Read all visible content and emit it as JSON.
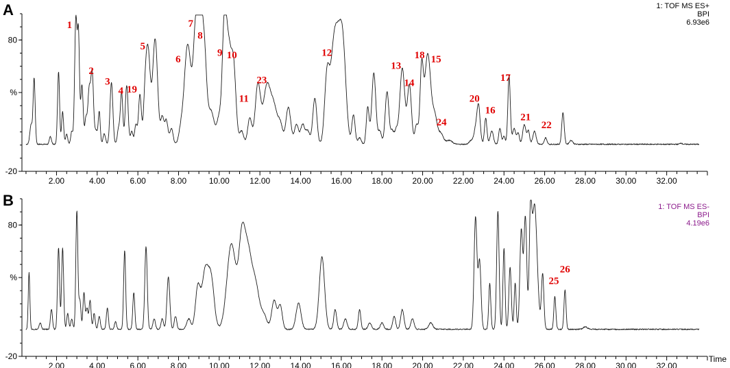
{
  "chart_data": [
    {
      "type": "line",
      "panel_label": "A",
      "info_lines": [
        "1: TOF MS ES+",
        "BPI",
        "6.93e6"
      ],
      "ylabel": "%",
      "yticks": [
        "80",
        "%",
        "-20"
      ],
      "xticks": [
        "2.00",
        "4.00",
        "6.00",
        "8.00",
        "10.00",
        "12.00",
        "14.00",
        "16.00",
        "18.00",
        "20.00",
        "22.00",
        "24.00",
        "26.00",
        "28.00",
        "30.00",
        "32.00"
      ],
      "xlim": [
        0.3,
        34.0
      ],
      "ylim": [
        -20,
        100
      ],
      "series": [
        {
          "peaks": [
            [
              0.75,
              15,
              0.06
            ],
            [
              0.9,
              50,
              0.05
            ],
            [
              1.7,
              6,
              0.05
            ],
            [
              2.1,
              55,
              0.05
            ],
            [
              2.3,
              25,
              0.05
            ],
            [
              2.5,
              8,
              0.05
            ],
            [
              2.75,
              10,
              0.05
            ],
            [
              2.95,
              95,
              0.06
            ],
            [
              3.08,
              80,
              0.05
            ],
            [
              3.25,
              45,
              0.06
            ],
            [
              3.45,
              20,
              0.06
            ],
            [
              3.6,
              38,
              0.06
            ],
            [
              3.75,
              55,
              0.07
            ],
            [
              3.95,
              10,
              0.06
            ],
            [
              4.1,
              25,
              0.05
            ],
            [
              4.35,
              8,
              0.06
            ],
            [
              4.7,
              47,
              0.07
            ],
            [
              5.05,
              12,
              0.06
            ],
            [
              5.2,
              40,
              0.06
            ],
            [
              5.45,
              45,
              0.07
            ],
            [
              5.7,
              10,
              0.06
            ],
            [
              5.9,
              15,
              0.06
            ],
            [
              6.1,
              38,
              0.07
            ],
            [
              6.35,
              25,
              0.08
            ],
            [
              6.5,
              70,
              0.11
            ],
            [
              6.85,
              80,
              0.12
            ],
            [
              7.2,
              20,
              0.08
            ],
            [
              7.4,
              18,
              0.08
            ],
            [
              7.65,
              12,
              0.08
            ],
            [
              8.1,
              8,
              0.1
            ],
            [
              8.45,
              76,
              0.17
            ],
            [
              8.85,
              85,
              0.12
            ],
            [
              9.05,
              80,
              0.1
            ],
            [
              9.25,
              75,
              0.12
            ],
            [
              9.6,
              25,
              0.15
            ],
            [
              10.0,
              20,
              0.12
            ],
            [
              10.25,
              85,
              0.1
            ],
            [
              10.45,
              67,
              0.12
            ],
            [
              10.7,
              60,
              0.12
            ],
            [
              11.1,
              10,
              0.1
            ],
            [
              11.5,
              20,
              0.1
            ],
            [
              11.9,
              45,
              0.13
            ],
            [
              12.35,
              45,
              0.18
            ],
            [
              12.7,
              25,
              0.15
            ],
            [
              13.0,
              15,
              0.12
            ],
            [
              13.4,
              28,
              0.12
            ],
            [
              13.8,
              15,
              0.1
            ],
            [
              14.1,
              15,
              0.1
            ],
            [
              14.35,
              10,
              0.1
            ],
            [
              14.7,
              35,
              0.1
            ],
            [
              15.3,
              52,
              0.12
            ],
            [
              15.6,
              45,
              0.15
            ],
            [
              15.85,
              70,
              0.2
            ],
            [
              16.1,
              50,
              0.15
            ],
            [
              16.6,
              22,
              0.08
            ],
            [
              16.9,
              5,
              0.08
            ],
            [
              17.3,
              28,
              0.07
            ],
            [
              17.6,
              54,
              0.1
            ],
            [
              17.9,
              10,
              0.08
            ],
            [
              18.25,
              40,
              0.09
            ],
            [
              18.5,
              10,
              0.08
            ],
            [
              18.7,
              10,
              0.08
            ],
            [
              19.0,
              58,
              0.12
            ],
            [
              19.35,
              45,
              0.1
            ],
            [
              19.7,
              15,
              0.08
            ],
            [
              19.95,
              55,
              0.08
            ],
            [
              20.25,
              69,
              0.15
            ],
            [
              20.6,
              20,
              0.12
            ],
            [
              20.9,
              8,
              0.12
            ],
            [
              21.3,
              3,
              0.15
            ],
            [
              22.4,
              3,
              0.1
            ],
            [
              22.6,
              10,
              0.08
            ],
            [
              22.75,
              29,
              0.08
            ],
            [
              23.1,
              20,
              0.06
            ],
            [
              23.4,
              10,
              0.08
            ],
            [
              23.8,
              12,
              0.06
            ],
            [
              24.0,
              6,
              0.06
            ],
            [
              24.25,
              52,
              0.06
            ],
            [
              24.5,
              12,
              0.08
            ],
            [
              24.7,
              8,
              0.06
            ],
            [
              25.0,
              15,
              0.08
            ],
            [
              25.2,
              10,
              0.06
            ],
            [
              25.5,
              10,
              0.08
            ],
            [
              26.05,
              5,
              0.06
            ],
            [
              26.9,
              24,
              0.06
            ],
            [
              27.3,
              3,
              0.08
            ],
            [
              32.7,
              1,
              0.05
            ]
          ]
        }
      ],
      "annotations": [
        {
          "text": "1",
          "x": 2.64,
          "y": 89
        },
        {
          "text": "2",
          "x": 3.71,
          "y": 54
        },
        {
          "text": "3",
          "x": 4.51,
          "y": 46
        },
        {
          "text": "4",
          "x": 5.16,
          "y": 39
        },
        {
          "text": "19",
          "x": 5.71,
          "y": 40
        },
        {
          "text": "5",
          "x": 6.24,
          "y": 73
        },
        {
          "text": "6",
          "x": 7.98,
          "y": 63
        },
        {
          "text": "7",
          "x": 8.6,
          "y": 90
        },
        {
          "text": "8",
          "x": 9.06,
          "y": 81
        },
        {
          "text": "9",
          "x": 10.03,
          "y": 68
        },
        {
          "text": "10",
          "x": 10.62,
          "y": 66
        },
        {
          "text": "11",
          "x": 11.21,
          "y": 33
        },
        {
          "text": "23",
          "x": 12.09,
          "y": 47
        },
        {
          "text": "12",
          "x": 15.29,
          "y": 68
        },
        {
          "text": "13",
          "x": 18.69,
          "y": 58
        },
        {
          "text": "14",
          "x": 19.34,
          "y": 45
        },
        {
          "text": "18",
          "x": 19.85,
          "y": 66
        },
        {
          "text": "15",
          "x": 20.66,
          "y": 63
        },
        {
          "text": "24",
          "x": 20.93,
          "y": 15
        },
        {
          "text": "20",
          "x": 22.55,
          "y": 33
        },
        {
          "text": "16",
          "x": 23.32,
          "y": 24
        },
        {
          "text": "17",
          "x": 24.07,
          "y": 49
        },
        {
          "text": "21",
          "x": 25.06,
          "y": 19
        },
        {
          "text": "22",
          "x": 26.09,
          "y": 13
        }
      ]
    },
    {
      "type": "line",
      "panel_label": "B",
      "info_lines": [
        "1: TOF MS ES-",
        "BPI",
        "4.19e6"
      ],
      "ylabel": "%",
      "xlabel": "Time",
      "yticks": [
        "80",
        "%",
        "-20"
      ],
      "xticks": [
        "2.00",
        "4.00",
        "6.00",
        "8.00",
        "10.00",
        "12.00",
        "14.00",
        "16.00",
        "18.00",
        "20.00",
        "22.00",
        "24.00",
        "26.00",
        "28.00",
        "30.00",
        "32.00"
      ],
      "xlim": [
        0.3,
        34.0
      ],
      "ylim": [
        -20,
        100
      ],
      "series": [
        {
          "peaks": [
            [
              0.65,
              43,
              0.04
            ],
            [
              1.2,
              5,
              0.05
            ],
            [
              1.75,
              15,
              0.05
            ],
            [
              2.1,
              62,
              0.05
            ],
            [
              2.3,
              62,
              0.05
            ],
            [
              2.55,
              12,
              0.05
            ],
            [
              2.75,
              8,
              0.05
            ],
            [
              3.0,
              90,
              0.05
            ],
            [
              3.15,
              22,
              0.05
            ],
            [
              3.35,
              28,
              0.05
            ],
            [
              3.5,
              16,
              0.05
            ],
            [
              3.65,
              22,
              0.05
            ],
            [
              3.85,
              12,
              0.05
            ],
            [
              4.1,
              10,
              0.05
            ],
            [
              4.5,
              16,
              0.05
            ],
            [
              4.9,
              6,
              0.05
            ],
            [
              5.35,
              60,
              0.05
            ],
            [
              5.8,
              28,
              0.05
            ],
            [
              6.4,
              63,
              0.06
            ],
            [
              6.8,
              8,
              0.06
            ],
            [
              7.2,
              8,
              0.06
            ],
            [
              7.5,
              40,
              0.07
            ],
            [
              7.85,
              10,
              0.06
            ],
            [
              8.5,
              8,
              0.1
            ],
            [
              8.95,
              32,
              0.12
            ],
            [
              9.3,
              42,
              0.15
            ],
            [
              9.6,
              38,
              0.15
            ],
            [
              10.6,
              65,
              0.22
            ],
            [
              11.1,
              55,
              0.15
            ],
            [
              11.4,
              58,
              0.2
            ],
            [
              11.8,
              30,
              0.18
            ],
            [
              12.2,
              10,
              0.15
            ],
            [
              12.7,
              22,
              0.12
            ],
            [
              13.0,
              18,
              0.1
            ],
            [
              13.9,
              20,
              0.12
            ],
            [
              15.05,
              55,
              0.13
            ],
            [
              15.7,
              15,
              0.07
            ],
            [
              16.2,
              8,
              0.08
            ],
            [
              16.9,
              15,
              0.06
            ],
            [
              17.4,
              5,
              0.08
            ],
            [
              18.0,
              5,
              0.08
            ],
            [
              18.6,
              10,
              0.07
            ],
            [
              19.0,
              15,
              0.08
            ],
            [
              19.5,
              8,
              0.08
            ],
            [
              20.4,
              5,
              0.1
            ],
            [
              22.6,
              85,
              0.07
            ],
            [
              22.8,
              52,
              0.07
            ],
            [
              23.3,
              35,
              0.05
            ],
            [
              23.7,
              90,
              0.06
            ],
            [
              24.0,
              62,
              0.05
            ],
            [
              24.3,
              47,
              0.06
            ],
            [
              24.55,
              35,
              0.05
            ],
            [
              24.85,
              75,
              0.07
            ],
            [
              25.05,
              85,
              0.07
            ],
            [
              25.3,
              70,
              0.06
            ],
            [
              25.5,
              95,
              0.13
            ],
            [
              25.9,
              42,
              0.06
            ],
            [
              26.5,
              25,
              0.05
            ],
            [
              27.0,
              30,
              0.05
            ],
            [
              28.0,
              2,
              0.1
            ]
          ]
        }
      ],
      "annotations": [
        {
          "text": "25",
          "x": 26.45,
          "y": 35
        },
        {
          "text": "26",
          "x": 27.0,
          "y": 44
        }
      ]
    }
  ]
}
